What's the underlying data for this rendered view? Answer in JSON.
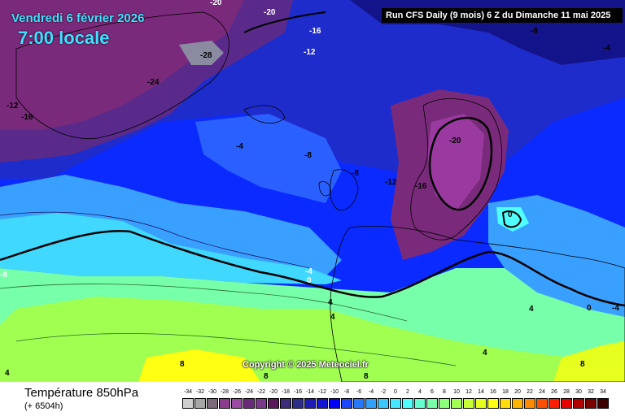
{
  "header": {
    "date": "Vendredi 6 février 2026",
    "time": "7:00 locale",
    "run": "Run CFS Daily (9 mois) 6 Z du Dimanche 11 mai 2025"
  },
  "map": {
    "copyright": "Copyright © 2025 Meteociel.fr",
    "isotherm_labels": {
      "a": "-20",
      "b": "-20",
      "c": "-16",
      "d": "-12",
      "e": "-28",
      "f": "-24",
      "g": "-12",
      "h": "-16",
      "i": "-8",
      "j": "-4",
      "k": "-4",
      "l": "-8",
      "m": "-8",
      "n": "-12",
      "o": "-16",
      "p": "-20",
      "q": "0",
      "r": "-4",
      "s": "0",
      "t": "-8",
      "u": "4",
      "v": "4",
      "w": "4",
      "x": "8",
      "y": "8",
      "z": "8",
      "aa": "8",
      "ab": "4",
      "ac": "0",
      "ad": "-4",
      "ae": "4",
      "af": "-8"
    }
  },
  "footer": {
    "title": "Température 850hPa",
    "subtitle": "(+ 6504h)"
  },
  "legend": {
    "labels": [
      "-34",
      "-32",
      "-30",
      "-28",
      "-26",
      "-24",
      "-22",
      "-20",
      "-18",
      "-16",
      "-14",
      "-12",
      "-10",
      "-8",
      "-6",
      "-4",
      "-2",
      "0",
      "2",
      "4",
      "6",
      "8",
      "10",
      "12",
      "14",
      "16",
      "18",
      "20",
      "22",
      "24",
      "26",
      "28",
      "30",
      "32",
      "34"
    ],
    "colors": [
      "#cfcfcf",
      "#a6a6a6",
      "#7a6a7a",
      "#8c3c8c",
      "#9a4aa0",
      "#6a2a7a",
      "#7a3a8a",
      "#5a1a5a",
      "#3c2c7a",
      "#2c2c8a",
      "#1c1cb4",
      "#1414d2",
      "#0000ff",
      "#1e46ff",
      "#2878ff",
      "#32a0ff",
      "#3cc8ff",
      "#46e6ff",
      "#50ffff",
      "#64ffd2",
      "#78ffaa",
      "#8cff78",
      "#a0ff50",
      "#c8ff32",
      "#e6ff1e",
      "#ffff14",
      "#ffdc0a",
      "#ffb400",
      "#ff8c00",
      "#ff5000",
      "#ff1e00",
      "#e60000",
      "#b40000",
      "#7a0000",
      "#3c0000"
    ]
  }
}
